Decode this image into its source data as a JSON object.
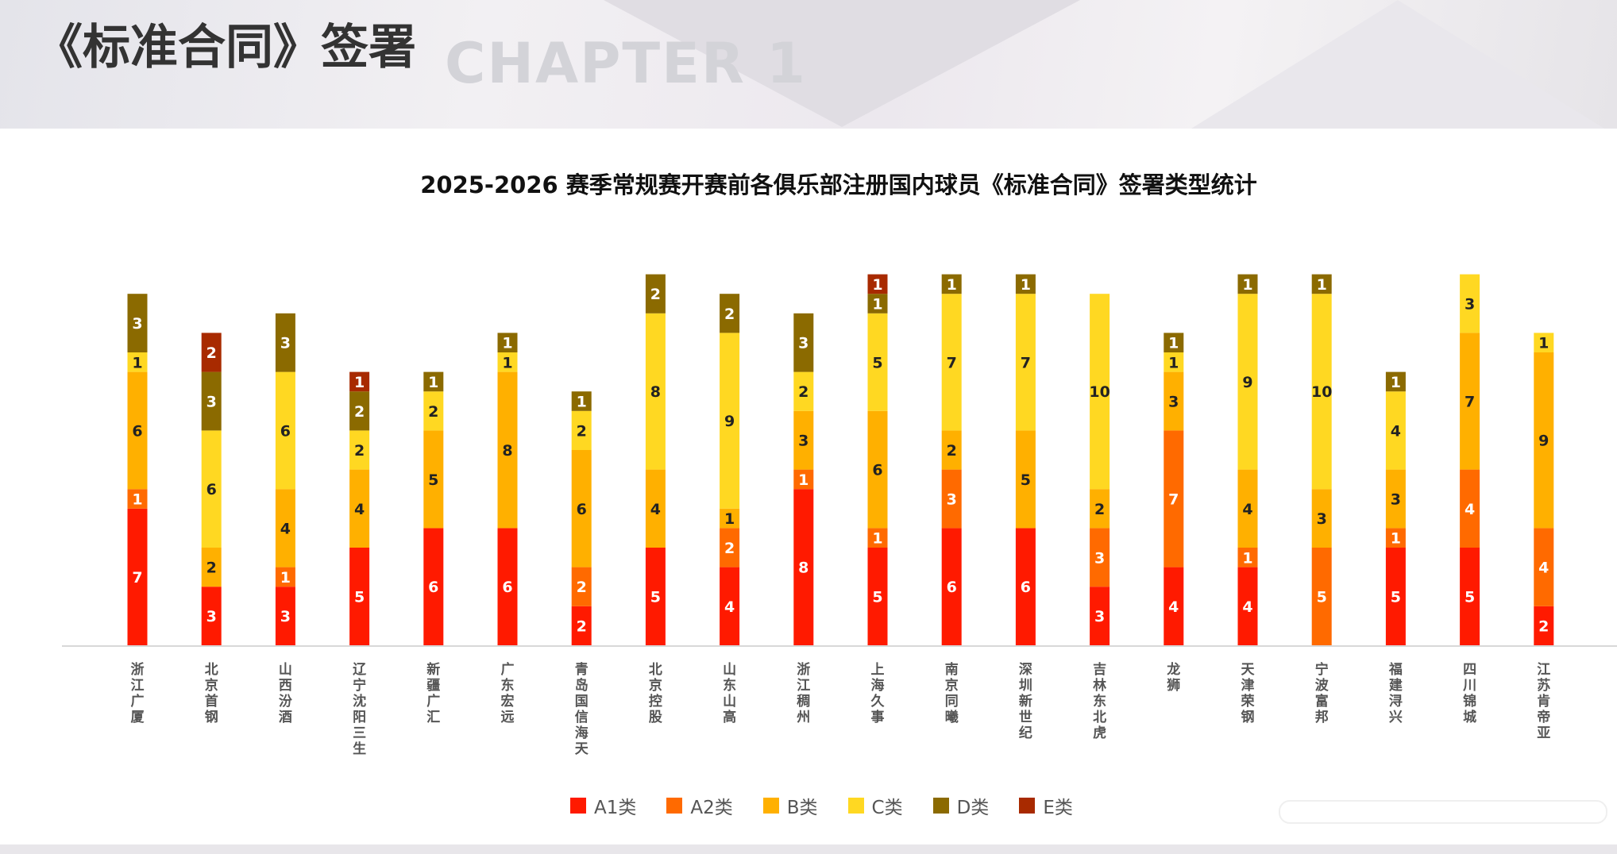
{
  "header": {
    "title": "《标准合同》签署",
    "watermark": "CHAPTER 1"
  },
  "chart_data": {
    "type": "bar",
    "stacked": true,
    "title": "2025-2026 赛季常规赛开赛前各俱乐部注册国内球员《标准合同》签署类型统计",
    "xlabel": "",
    "ylabel": "",
    "grid": false,
    "legend_position": "bottom",
    "categories": [
      "浙江广厦",
      "北京首钢",
      "山西汾酒",
      "辽宁沈阳三生",
      "新疆广汇",
      "广东宏远",
      "青岛国信海天",
      "北京控股",
      "山东山高",
      "浙江稠州",
      "上海久事",
      "南京同曦",
      "深圳新世纪",
      "吉林东北虎",
      "龙狮",
      "天津荣钢",
      "宁波富邦",
      "福建浔兴",
      "四川锦城",
      "江苏肯帝亚"
    ],
    "series": [
      {
        "name": "A1类",
        "color": "#ff1a00",
        "values": [
          7,
          3,
          3,
          5,
          6,
          6,
          2,
          5,
          4,
          8,
          5,
          6,
          6,
          3,
          4,
          4,
          0,
          5,
          5,
          2
        ]
      },
      {
        "name": "A2类",
        "color": "#ff6a00",
        "values": [
          1,
          0,
          1,
          0,
          0,
          0,
          2,
          0,
          2,
          1,
          1,
          3,
          0,
          3,
          7,
          1,
          5,
          1,
          4,
          4
        ]
      },
      {
        "name": "B类",
        "color": "#ffb000",
        "values": [
          6,
          2,
          4,
          4,
          5,
          8,
          6,
          4,
          1,
          3,
          6,
          2,
          5,
          2,
          3,
          4,
          3,
          3,
          7,
          9
        ]
      },
      {
        "name": "C类",
        "color": "#ffd822",
        "values": [
          1,
          6,
          6,
          2,
          2,
          1,
          2,
          8,
          9,
          2,
          5,
          7,
          7,
          10,
          1,
          9,
          10,
          4,
          3,
          1
        ]
      },
      {
        "name": "D类",
        "color": "#8b6a00",
        "values": [
          3,
          3,
          3,
          2,
          1,
          1,
          1,
          2,
          2,
          3,
          1,
          1,
          1,
          0,
          1,
          1,
          1,
          1,
          0,
          0
        ]
      },
      {
        "name": "E类",
        "color": "#a82a00",
        "values": [
          0,
          2,
          0,
          1,
          0,
          0,
          0,
          0,
          0,
          0,
          1,
          0,
          0,
          0,
          0,
          0,
          0,
          0,
          0,
          0
        ]
      }
    ]
  }
}
